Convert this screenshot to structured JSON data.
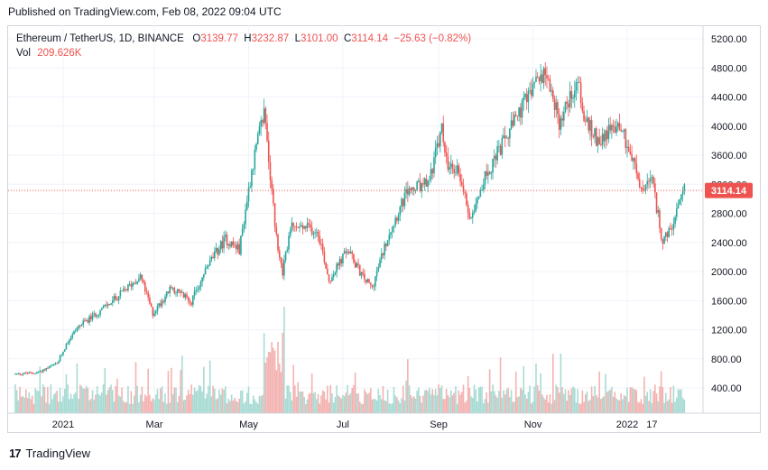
{
  "published": "Published on TradingView.com, Feb 08, 2022 09:04 UTC",
  "legend": {
    "symbol": "Ethereum / TetherUS, 1D, BINANCE",
    "o_label": "O",
    "o_value": "3139.77",
    "h_label": "H",
    "h_value": "3232.87",
    "l_label": "L",
    "l_value": "3101.00",
    "c_label": "C",
    "c_value": "3114.14",
    "change": "−25.63 (−0.82%)",
    "vol_label": "Vol",
    "vol_value": "209.626K"
  },
  "price_badge": "3114.14",
  "footer": {
    "logo": "17",
    "name": "TradingView"
  },
  "colors": {
    "up": "#26a69a",
    "down": "#ef5350",
    "vol_up": "#a8dbd4",
    "vol_down": "#f3b3b1",
    "grid": "#f0f3fa",
    "axis_border": "#d1d4dc"
  },
  "chart_data": {
    "type": "candlestick",
    "symbol": "ETH/USDT",
    "interval": "1D",
    "exchange": "BINANCE",
    "y_ticks": [
      400,
      800,
      1200,
      1600,
      2000,
      2400,
      2800,
      3200,
      3600,
      4000,
      4400,
      4800,
      5200
    ],
    "y_tick_labels": [
      "400.00",
      "800.00",
      "1200.00",
      "1600.00",
      "2000.00",
      "2400.00",
      "2800.00",
      "3200.00",
      "3600.00",
      "4000.00",
      "4400.00",
      "4800.00",
      "5200.00"
    ],
    "ylim": [
      0,
      5400
    ],
    "x_ticks": [
      {
        "label": "2021",
        "date": "2021-01-01"
      },
      {
        "label": "Mar",
        "date": "2021-03-01"
      },
      {
        "label": "May",
        "date": "2021-05-01"
      },
      {
        "label": "Jul",
        "date": "2021-07-01"
      },
      {
        "label": "Sep",
        "date": "2021-09-01"
      },
      {
        "label": "Nov",
        "date": "2021-11-01"
      },
      {
        "label": "2022",
        "date": "2022-01-01"
      },
      {
        "label": "17",
        "date": "2022-01-17"
      }
    ],
    "last_close": 3114.14,
    "close_series": [
      {
        "date": "2020-12-01",
        "close": 590
      },
      {
        "date": "2020-12-15",
        "close": 610
      },
      {
        "date": "2020-12-28",
        "close": 730
      },
      {
        "date": "2021-01-04",
        "close": 1040
      },
      {
        "date": "2021-01-10",
        "close": 1230
      },
      {
        "date": "2021-01-20",
        "close": 1380
      },
      {
        "date": "2021-02-05",
        "close": 1650
      },
      {
        "date": "2021-02-20",
        "close": 1940
      },
      {
        "date": "2021-02-28",
        "close": 1420
      },
      {
        "date": "2021-03-12",
        "close": 1780
      },
      {
        "date": "2021-03-25",
        "close": 1590
      },
      {
        "date": "2021-04-05",
        "close": 2100
      },
      {
        "date": "2021-04-16",
        "close": 2450
      },
      {
        "date": "2021-04-25",
        "close": 2300
      },
      {
        "date": "2021-05-03",
        "close": 3400
      },
      {
        "date": "2021-05-11",
        "close": 4200
      },
      {
        "date": "2021-05-19",
        "close": 2450
      },
      {
        "date": "2021-05-23",
        "close": 2000
      },
      {
        "date": "2021-05-28",
        "close": 2600
      },
      {
        "date": "2021-06-08",
        "close": 2600
      },
      {
        "date": "2021-06-15",
        "close": 2550
      },
      {
        "date": "2021-06-22",
        "close": 1880
      },
      {
        "date": "2021-07-04",
        "close": 2300
      },
      {
        "date": "2021-07-14",
        "close": 1920
      },
      {
        "date": "2021-07-20",
        "close": 1780
      },
      {
        "date": "2021-07-31",
        "close": 2550
      },
      {
        "date": "2021-08-12",
        "close": 3100
      },
      {
        "date": "2021-08-25",
        "close": 3200
      },
      {
        "date": "2021-09-03",
        "close": 3950
      },
      {
        "date": "2021-09-07",
        "close": 3400
      },
      {
        "date": "2021-09-14",
        "close": 3400
      },
      {
        "date": "2021-09-21",
        "close": 2750
      },
      {
        "date": "2021-10-01",
        "close": 3300
      },
      {
        "date": "2021-10-15",
        "close": 3850
      },
      {
        "date": "2021-10-29",
        "close": 4400
      },
      {
        "date": "2021-11-09",
        "close": 4800
      },
      {
        "date": "2021-11-18",
        "close": 4050
      },
      {
        "date": "2021-11-30",
        "close": 4650
      },
      {
        "date": "2021-12-04",
        "close": 4100
      },
      {
        "date": "2021-12-13",
        "close": 3800
      },
      {
        "date": "2021-12-27",
        "close": 4050
      },
      {
        "date": "2022-01-05",
        "close": 3500
      },
      {
        "date": "2022-01-10",
        "close": 3100
      },
      {
        "date": "2022-01-17",
        "close": 3250
      },
      {
        "date": "2022-01-24",
        "close": 2400
      },
      {
        "date": "2022-01-30",
        "close": 2600
      },
      {
        "date": "2022-02-07",
        "close": 3114
      }
    ]
  }
}
